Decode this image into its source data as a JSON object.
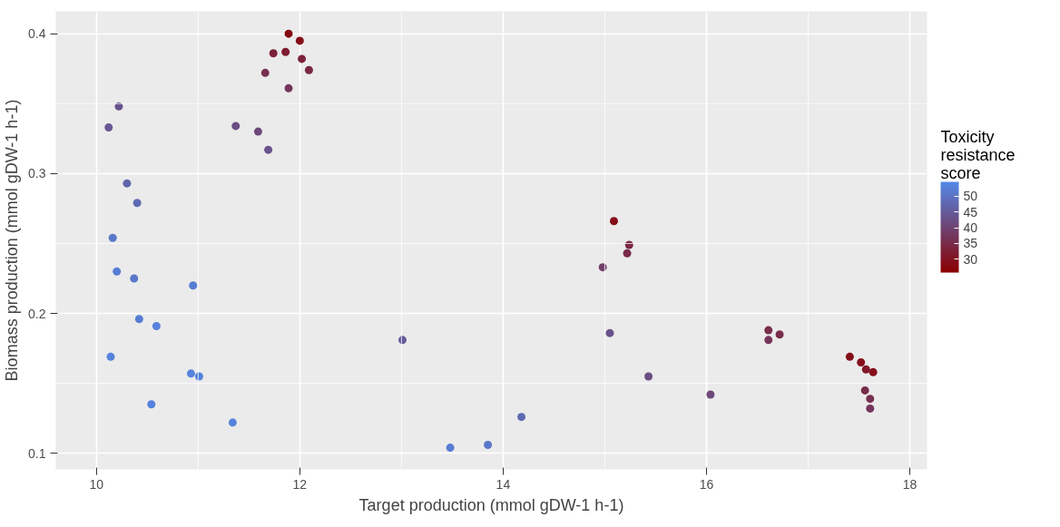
{
  "chart_data": {
    "type": "scatter",
    "xlabel": "Target production (mmol gDW-1 h-1)",
    "ylabel": "Biomass production (mmol gDW-1 h-1)",
    "clabel": "Toxicity resistance score",
    "x": [
      11.89,
      12.0,
      11.74,
      11.86,
      12.02,
      12.09,
      11.66,
      11.89,
      10.22,
      10.12,
      11.37,
      11.59,
      11.69,
      10.3,
      10.4,
      10.16,
      10.2,
      10.37,
      10.95,
      10.42,
      10.59,
      10.14,
      10.93,
      11.01,
      10.54,
      11.34,
      13.01,
      13.48,
      13.85,
      14.18,
      15.09,
      15.24,
      15.22,
      14.98,
      15.05,
      15.43,
      16.04,
      16.61,
      16.61,
      16.72,
      17.41,
      17.52,
      17.57,
      17.64,
      17.56,
      17.61,
      17.61
    ],
    "values": [
      0.4,
      0.395,
      0.386,
      0.387,
      0.382,
      0.374,
      0.372,
      0.361,
      0.348,
      0.333,
      0.334,
      0.33,
      0.317,
      0.293,
      0.279,
      0.254,
      0.23,
      0.225,
      0.22,
      0.196,
      0.191,
      0.169,
      0.157,
      0.155,
      0.135,
      0.122,
      0.181,
      0.104,
      0.106,
      0.126,
      0.266,
      0.249,
      0.243,
      0.233,
      0.186,
      0.155,
      0.142,
      0.188,
      0.181,
      0.185,
      0.169,
      0.165,
      0.16,
      0.158,
      0.145,
      0.139,
      0.132
    ],
    "cvalues": [
      28,
      29,
      33,
      32,
      33,
      34,
      36,
      37,
      43,
      44,
      42,
      41,
      43,
      47,
      48,
      51,
      52,
      51,
      52,
      52,
      53,
      53,
      53,
      53,
      53,
      53,
      45,
      52,
      51,
      48,
      29,
      34,
      35,
      39,
      43,
      42,
      41,
      35,
      37,
      35,
      29,
      29,
      31,
      29,
      35,
      36,
      37
    ],
    "clim": [
      25.8,
      54.5
    ],
    "cticks": [
      30,
      35,
      40,
      45,
      50
    ],
    "xlim": [
      9.6,
      18.17
    ],
    "ylim": [
      0.0885,
      0.416
    ],
    "xticks": [
      10,
      12,
      14,
      16,
      18
    ],
    "yticks": [
      0.1,
      0.2,
      0.3,
      0.4
    ],
    "grid": true,
    "marker": "circle"
  }
}
